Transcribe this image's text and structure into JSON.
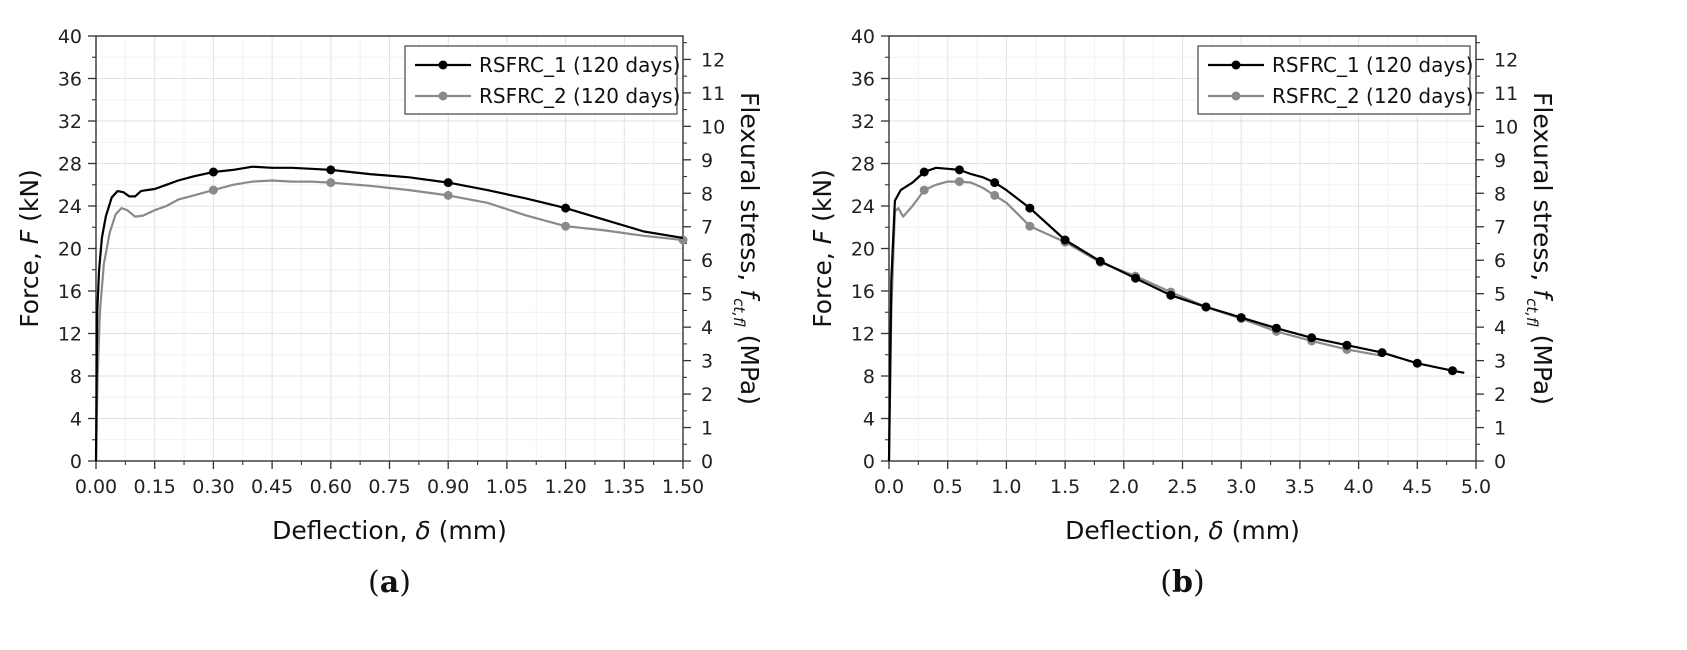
{
  "chart_data": [
    {
      "type": "line",
      "panel_label_open": "(",
      "panel_label_letter": "a",
      "panel_label_close": ")",
      "xlabel": "Deflection, ",
      "xlabel_symbol": "δ",
      "xlabel_unit": " (mm)",
      "ylabel": "Force, ",
      "ylabel_symbol": "F",
      "ylabel_unit": " (kN)",
      "y2label": "Flexural stress, ",
      "y2label_symbol": "f",
      "y2label_sub": "ct,fl",
      "y2label_unit": " (MPa)",
      "xlim": [
        0,
        1.5
      ],
      "ylim": [
        0,
        40
      ],
      "y2lim": [
        0,
        12.7
      ],
      "xticks": [
        "0.00",
        "0.15",
        "0.30",
        "0.45",
        "0.60",
        "0.75",
        "0.90",
        "1.05",
        "1.20",
        "1.35",
        "1.50"
      ],
      "yticks": [
        "0",
        "4",
        "8",
        "12",
        "16",
        "20",
        "24",
        "28",
        "32",
        "36",
        "40"
      ],
      "y2ticks": [
        "0",
        "1",
        "2",
        "3",
        "4",
        "5",
        "6",
        "7",
        "8",
        "9",
        "10",
        "11",
        "12"
      ],
      "grid": true,
      "legend_position": "top-right",
      "series": [
        {
          "name": "RSFRC_1 (120 days)",
          "color": "#000000",
          "x": [
            0,
            0.003,
            0.008,
            0.015,
            0.025,
            0.04,
            0.055,
            0.07,
            0.085,
            0.1,
            0.115,
            0.13,
            0.15,
            0.18,
            0.21,
            0.25,
            0.3,
            0.35,
            0.4,
            0.45,
            0.5,
            0.55,
            0.6,
            0.7,
            0.8,
            0.9,
            1.0,
            1.1,
            1.2,
            1.3,
            1.4,
            1.5
          ],
          "y": [
            0,
            14,
            18,
            21,
            23,
            24.8,
            25.4,
            25.3,
            24.9,
            24.9,
            25.4,
            25.5,
            25.6,
            26.0,
            26.4,
            26.8,
            27.2,
            27.4,
            27.7,
            27.6,
            27.6,
            27.5,
            27.4,
            27.0,
            26.7,
            26.2,
            25.5,
            24.7,
            23.8,
            22.7,
            21.6,
            21.0
          ],
          "markers_x": [
            0.3,
            0.6,
            0.9,
            1.2
          ],
          "markers_y": [
            27.2,
            27.4,
            26.2,
            23.8
          ]
        },
        {
          "name": "RSFRC_2 (120 days)",
          "color": "#8a8a8a",
          "x": [
            0,
            0.004,
            0.01,
            0.02,
            0.035,
            0.05,
            0.065,
            0.08,
            0.1,
            0.12,
            0.15,
            0.18,
            0.21,
            0.25,
            0.3,
            0.35,
            0.4,
            0.45,
            0.5,
            0.55,
            0.6,
            0.7,
            0.8,
            0.9,
            1.0,
            1.1,
            1.2,
            1.3,
            1.4,
            1.5
          ],
          "y": [
            0,
            8,
            14,
            18.5,
            21.5,
            23.2,
            23.8,
            23.6,
            23.0,
            23.1,
            23.6,
            24.0,
            24.6,
            25.0,
            25.5,
            26.0,
            26.3,
            26.4,
            26.3,
            26.3,
            26.2,
            25.9,
            25.5,
            25.0,
            24.3,
            23.1,
            22.1,
            21.7,
            21.2,
            20.8
          ],
          "markers_x": [
            0.3,
            0.6,
            0.9,
            1.2,
            1.5
          ],
          "markers_y": [
            25.5,
            26.2,
            25.0,
            22.1,
            20.8
          ]
        }
      ]
    },
    {
      "type": "line",
      "panel_label_open": "(",
      "panel_label_letter": "b",
      "panel_label_close": ")",
      "xlabel": "Deflection, ",
      "xlabel_symbol": "δ",
      "xlabel_unit": " (mm)",
      "ylabel": "Force, ",
      "ylabel_symbol": "F",
      "ylabel_unit": " (kN)",
      "y2label": "Flexural stress, ",
      "y2label_symbol": "f",
      "y2label_sub": "ct,fl",
      "y2label_unit": " (MPa)",
      "xlim": [
        0,
        5.0
      ],
      "ylim": [
        0,
        40
      ],
      "y2lim": [
        0,
        12.7
      ],
      "xticks": [
        "0.0",
        "0.5",
        "1.0",
        "1.5",
        "2.0",
        "2.5",
        "3.0",
        "3.5",
        "4.0",
        "4.5",
        "5.0"
      ],
      "yticks": [
        "0",
        "4",
        "8",
        "12",
        "16",
        "20",
        "24",
        "28",
        "32",
        "36",
        "40"
      ],
      "y2ticks": [
        "0",
        "1",
        "2",
        "3",
        "4",
        "5",
        "6",
        "7",
        "8",
        "9",
        "10",
        "11",
        "12"
      ],
      "grid": true,
      "legend_position": "top-right",
      "series": [
        {
          "name": "RSFRC_1 (120 days)",
          "color": "#000000",
          "x": [
            0,
            0.02,
            0.05,
            0.1,
            0.2,
            0.3,
            0.4,
            0.5,
            0.6,
            0.7,
            0.8,
            0.9,
            1.0,
            1.2,
            1.5,
            1.8,
            2.1,
            2.4,
            2.7,
            3.0,
            3.3,
            3.6,
            3.9,
            4.2,
            4.5,
            4.8,
            4.9
          ],
          "y": [
            0,
            17,
            24.5,
            25.5,
            26.2,
            27.2,
            27.6,
            27.5,
            27.4,
            27.0,
            26.7,
            26.2,
            25.5,
            23.8,
            20.8,
            18.8,
            17.2,
            15.6,
            14.5,
            13.5,
            12.5,
            11.6,
            10.9,
            10.2,
            9.2,
            8.5,
            8.3
          ],
          "markers_x": [
            0.3,
            0.6,
            0.9,
            1.2,
            1.5,
            1.8,
            2.1,
            2.4,
            2.7,
            3.0,
            3.3,
            3.6,
            3.9,
            4.2,
            4.5,
            4.8
          ],
          "markers_y": [
            27.2,
            27.4,
            26.2,
            23.8,
            20.8,
            18.8,
            17.2,
            15.6,
            14.5,
            13.5,
            12.5,
            11.6,
            10.9,
            10.2,
            9.2,
            8.5
          ]
        },
        {
          "name": "RSFRC_2 (120 days)",
          "color": "#8a8a8a",
          "x": [
            0,
            0.02,
            0.05,
            0.08,
            0.12,
            0.2,
            0.3,
            0.4,
            0.5,
            0.6,
            0.7,
            0.8,
            0.9,
            1.0,
            1.2,
            1.5,
            1.8,
            2.1,
            2.4,
            2.7,
            3.0,
            3.3,
            3.6,
            3.9,
            4.2
          ],
          "y": [
            0,
            14,
            23.5,
            23.8,
            23.0,
            24.0,
            25.5,
            26.0,
            26.3,
            26.3,
            26.2,
            25.7,
            25.0,
            24.3,
            22.1,
            20.6,
            18.7,
            17.4,
            15.9,
            14.5,
            13.4,
            12.2,
            11.3,
            10.5,
            9.9
          ],
          "markers_x": [
            0.3,
            0.6,
            0.9,
            1.2,
            1.5,
            1.8,
            2.1,
            2.4,
            2.7,
            3.0,
            3.3,
            3.6,
            3.9
          ],
          "markers_y": [
            25.5,
            26.3,
            25.0,
            22.1,
            20.6,
            18.7,
            17.4,
            15.9,
            14.5,
            13.4,
            12.2,
            11.3,
            10.5
          ]
        }
      ]
    }
  ]
}
